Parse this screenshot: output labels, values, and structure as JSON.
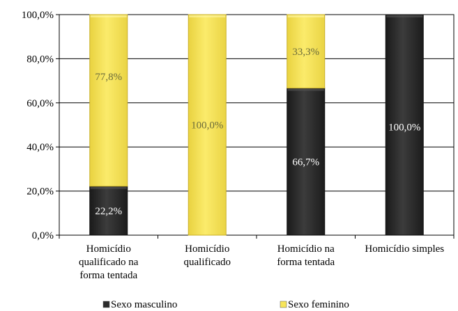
{
  "chart_data": {
    "type": "bar",
    "stacked": true,
    "percent": true,
    "title": "",
    "xlabel": "",
    "ylabel": "",
    "ylim": [
      0,
      100
    ],
    "yticks": [
      "0,0%",
      "20,0%",
      "40,0%",
      "60,0%",
      "80,0%",
      "100,0%"
    ],
    "ytick_values": [
      0,
      20,
      40,
      60,
      80,
      100
    ],
    "grid": "horizontal",
    "legend_position": "bottom",
    "categories": [
      [
        "Homicídio",
        "qualificado na",
        "forma tentada"
      ],
      [
        "Homicídio",
        "qualificado"
      ],
      [
        "Homicídio na",
        "forma tentada"
      ],
      [
        "Homicídio simples"
      ]
    ],
    "series": [
      {
        "name": "Sexo masculino",
        "color": "#2b2b2b",
        "values": [
          22.2,
          0,
          66.7,
          100
        ],
        "labels": [
          "22,2%",
          "",
          "66,7%",
          "100,0%"
        ],
        "label_color": "#ffffff"
      },
      {
        "name": "Sexo feminino",
        "color": "#f7e55a",
        "values": [
          77.8,
          100,
          33.3,
          0
        ],
        "labels": [
          "77,8%",
          "100,0%",
          "33,3%",
          ""
        ],
        "label_color": "#6b6b3a"
      }
    ]
  }
}
